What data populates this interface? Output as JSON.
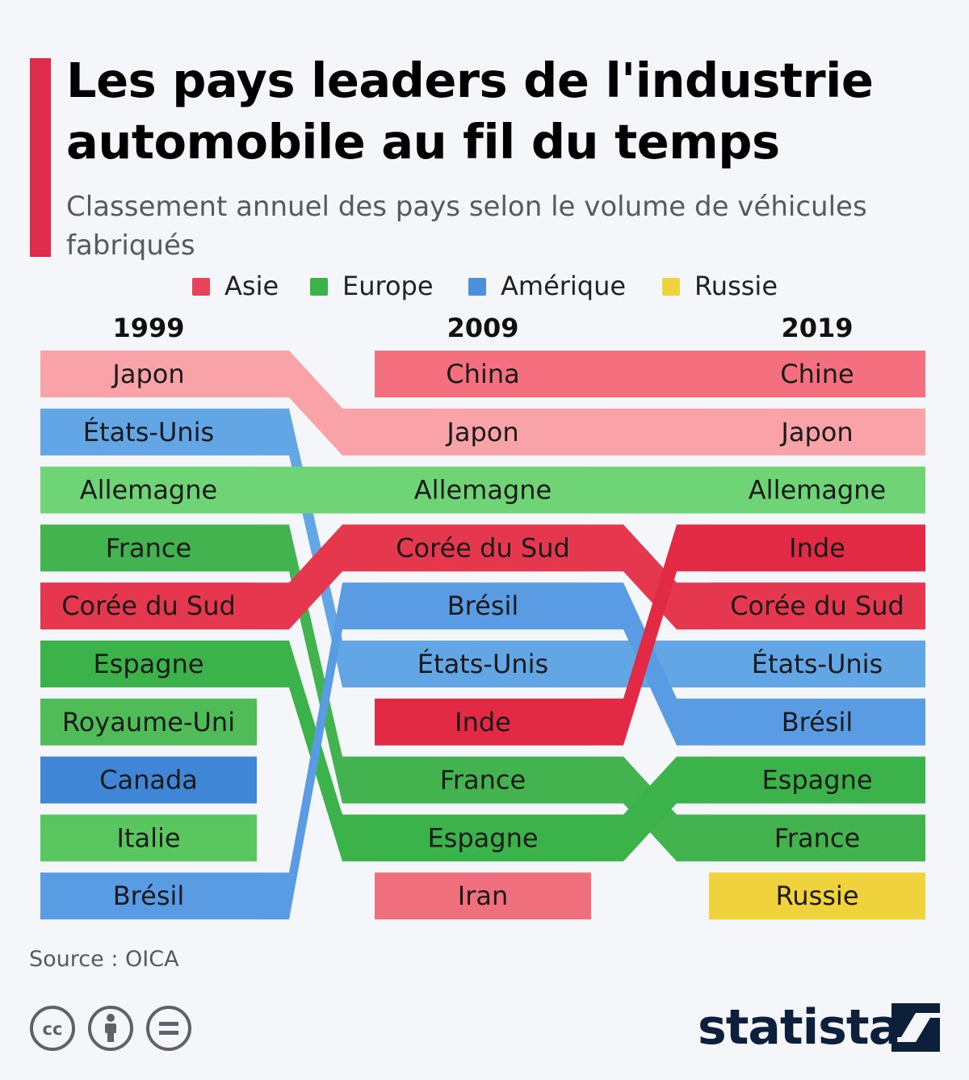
{
  "header": {
    "title": "Les pays leaders de l'industrie automobile au fil du temps",
    "subtitle": "Classement annuel des pays selon le volume de véhicules fabriqués"
  },
  "legend": [
    {
      "label": "Asie",
      "color": "#e8435a"
    },
    {
      "label": "Europe",
      "color": "#3cb24a"
    },
    {
      "label": "Amérique",
      "color": "#4a90dc"
    },
    {
      "label": "Russie",
      "color": "#f0d33c"
    }
  ],
  "chart_data": {
    "type": "bump",
    "title": "Les pays leaders de l'industrie automobile au fil du temps",
    "subtitle": "Classement annuel des pays selon le volume de véhicules fabriqués",
    "years": [
      "1999",
      "2009",
      "2019"
    ],
    "rankings": {
      "1999": [
        "Japon",
        "États-Unis",
        "Allemagne",
        "France",
        "Corée du Sud",
        "Espagne",
        "Royaume-Uni",
        "Canada",
        "Italie",
        "Brésil"
      ],
      "2009": [
        "China",
        "Japon",
        "Allemagne",
        "Corée du Sud",
        "Brésil",
        "États-Unis",
        "Inde",
        "France",
        "Espagne",
        "Iran"
      ],
      "2019": [
        "Chine",
        "Japon",
        "Allemagne",
        "Inde",
        "Corée du Sud",
        "États-Unis",
        "Brésil",
        "Espagne",
        "France",
        "Russie"
      ]
    },
    "flows": [
      {
        "country": "Japon",
        "ranks": [
          1,
          2,
          2
        ],
        "region": "Asie",
        "color": "#f9a3a8"
      },
      {
        "country": "Chine",
        "ranks": [
          null,
          1,
          1
        ],
        "region": "Asie",
        "color": "#f4707f"
      },
      {
        "country": "États-Unis",
        "ranks": [
          2,
          6,
          6
        ],
        "region": "Amérique",
        "color": "#62a6e6"
      },
      {
        "country": "Allemagne",
        "ranks": [
          3,
          3,
          3
        ],
        "region": "Europe",
        "color": "#6fd475"
      },
      {
        "country": "France",
        "ranks": [
          4,
          8,
          9
        ],
        "region": "Europe",
        "color": "#42b34e"
      },
      {
        "country": "Corée du Sud",
        "ranks": [
          5,
          4,
          5
        ],
        "region": "Asie",
        "color": "#e5384f"
      },
      {
        "country": "Espagne",
        "ranks": [
          6,
          9,
          8
        ],
        "region": "Europe",
        "color": "#3cb24a"
      },
      {
        "country": "Brésil",
        "ranks": [
          10,
          5,
          7
        ],
        "region": "Amérique",
        "color": "#5a9ce4"
      },
      {
        "country": "Inde",
        "ranks": [
          null,
          7,
          4
        ],
        "region": "Asie",
        "color": "#e22a45"
      },
      {
        "country": "Royaume-Uni",
        "ranks": [
          7,
          null,
          null
        ],
        "region": "Europe",
        "color": "#4fbc58"
      },
      {
        "country": "Canada",
        "ranks": [
          8,
          null,
          null
        ],
        "region": "Amérique",
        "color": "#3f86d6"
      },
      {
        "country": "Italie",
        "ranks": [
          9,
          null,
          null
        ],
        "region": "Europe",
        "color": "#5ac660"
      },
      {
        "country": "Iran",
        "ranks": [
          null,
          10,
          null
        ],
        "region": "Asie",
        "color": "#f06f7c"
      },
      {
        "country": "Russie",
        "ranks": [
          null,
          null,
          10
        ],
        "region": "Russie",
        "color": "#f0d33c"
      }
    ]
  },
  "footer": {
    "source": "Source : OICA",
    "license_icons": [
      "cc-icon",
      "attribution-icon",
      "no-derivatives-icon"
    ],
    "brand": "statista"
  }
}
